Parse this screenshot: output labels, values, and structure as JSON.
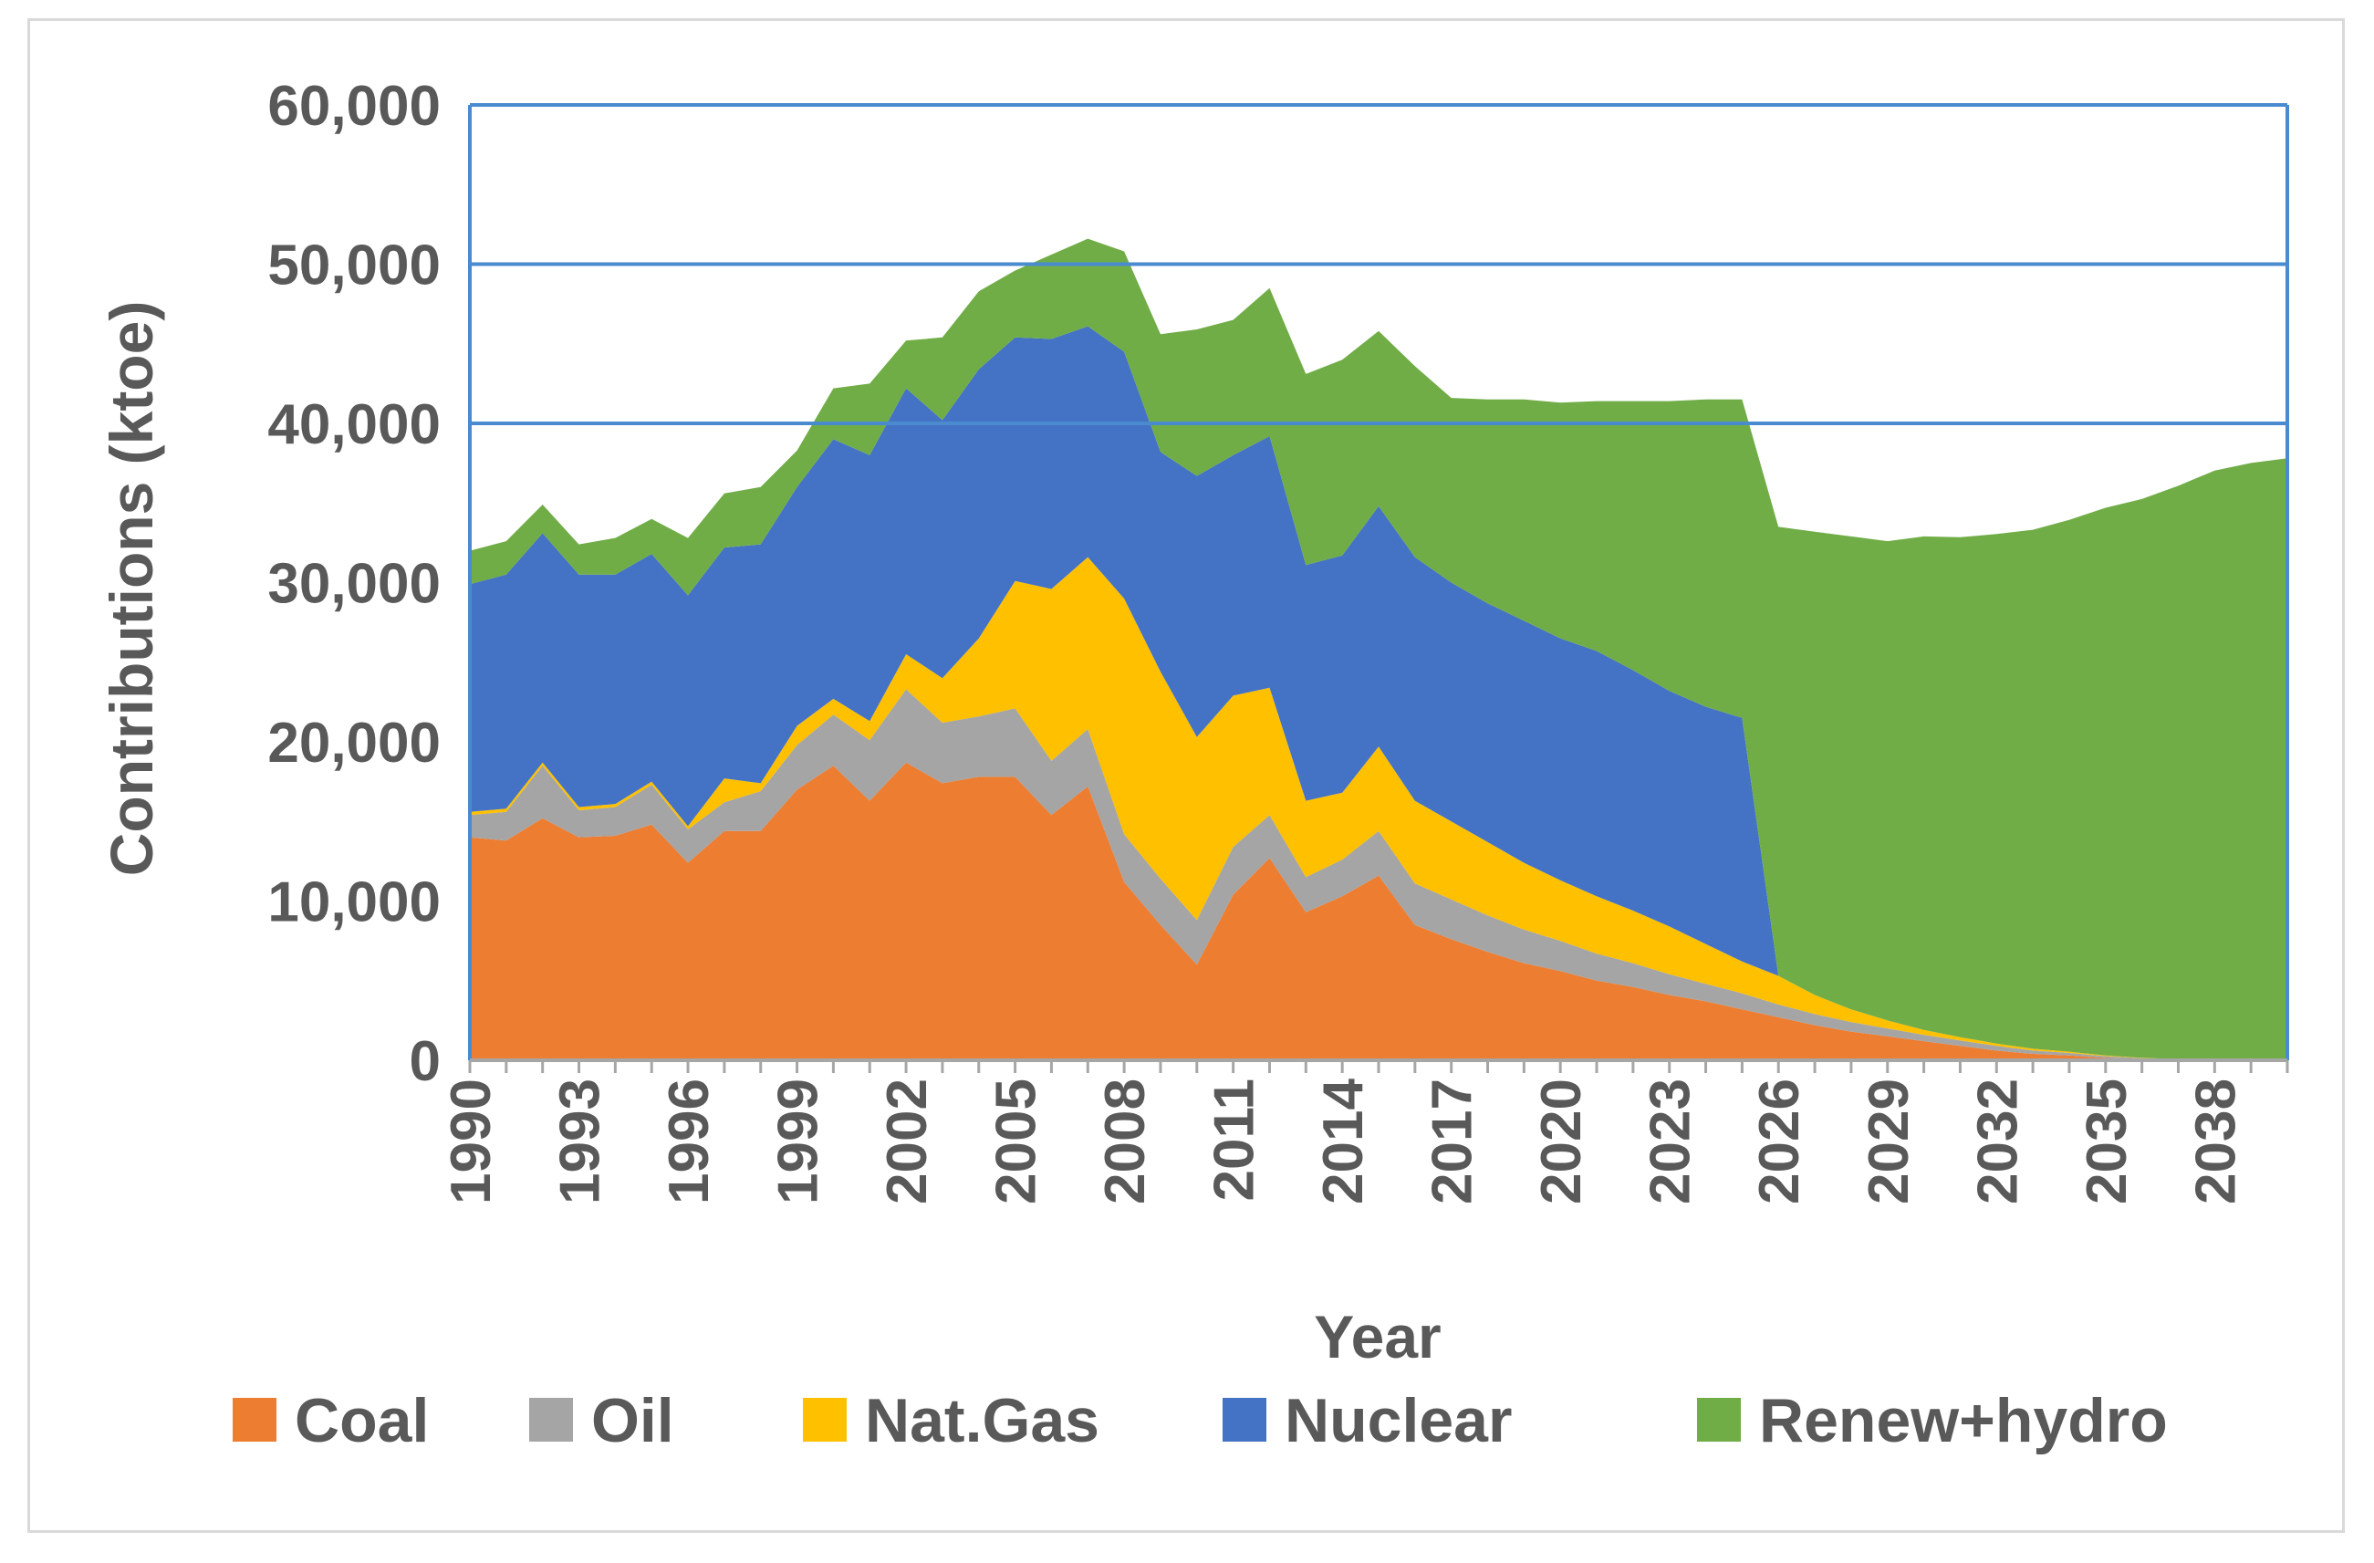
{
  "chart_data": {
    "type": "area",
    "stacked": true,
    "title": "",
    "xlabel": "Year",
    "ylabel": "Contributions (ktoe)",
    "ylim": [
      0,
      60000
    ],
    "yticks": [
      0,
      10000,
      20000,
      30000,
      40000,
      50000,
      60000
    ],
    "ytick_labels": [
      "0",
      "10,000",
      "20,000",
      "30,000",
      "40,000",
      "50,000",
      "60,000"
    ],
    "gridlines": [
      40000,
      50000
    ],
    "legend_position": "bottom",
    "x": [
      1990,
      1991,
      1992,
      1993,
      1994,
      1995,
      1996,
      1997,
      1998,
      1999,
      2000,
      2001,
      2002,
      2003,
      2004,
      2005,
      2006,
      2007,
      2008,
      2009,
      2010,
      2011,
      2012,
      2013,
      2014,
      2015,
      2016,
      2017,
      2018,
      2019,
      2020,
      2021,
      2022,
      2023,
      2024,
      2025,
      2026,
      2027,
      2028,
      2029,
      2030,
      2031,
      2032,
      2033,
      2034,
      2035,
      2036,
      2037,
      2038,
      2039,
      2040
    ],
    "xtick_labels": [
      "1990",
      "1993",
      "1996",
      "1999",
      "2002",
      "2005",
      "2008",
      "2011",
      "2014",
      "2017",
      "2020",
      "2023",
      "2026",
      "2029",
      "2032",
      "2035",
      "2038"
    ],
    "series": [
      {
        "name": "Coal",
        "color": "#ED7D31",
        "values": [
          14000,
          13800,
          15200,
          14000,
          14100,
          14800,
          12400,
          14400,
          14400,
          17000,
          18500,
          16300,
          18700,
          17400,
          17800,
          17800,
          15400,
          17200,
          11200,
          8500,
          6000,
          10400,
          12700,
          9300,
          10300,
          11600,
          8500,
          7600,
          6800,
          6100,
          5600,
          5000,
          4600,
          4100,
          3700,
          3200,
          2700,
          2200,
          1800,
          1500,
          1200,
          900,
          600,
          400,
          300,
          150,
          60,
          30,
          10,
          5,
          0
        ]
      },
      {
        "name": "Oil",
        "color": "#A5A5A5",
        "values": [
          1400,
          1800,
          3300,
          1700,
          1800,
          2500,
          2100,
          1800,
          2500,
          2800,
          3200,
          3800,
          4600,
          3800,
          3800,
          4300,
          3400,
          3600,
          3000,
          2900,
          2800,
          3000,
          2700,
          2200,
          2300,
          2800,
          2600,
          2500,
          2300,
          2100,
          1900,
          1700,
          1500,
          1300,
          1100,
          1000,
          800,
          700,
          600,
          500,
          400,
          350,
          300,
          220,
          160,
          110,
          70,
          40,
          20,
          10,
          5
        ]
      },
      {
        "name": "Nat.Gas",
        "color": "#FFC000",
        "values": [
          200,
          200,
          200,
          200,
          200,
          200,
          200,
          1500,
          500,
          1200,
          1000,
          1200,
          2200,
          2800,
          4900,
          8000,
          10800,
          10800,
          14800,
          13000,
          11500,
          9500,
          8000,
          4800,
          4200,
          5300,
          5200,
          4900,
          4600,
          4200,
          3800,
          3600,
          3300,
          3000,
          2500,
          2000,
          1800,
          1200,
          800,
          500,
          300,
          200,
          150,
          100,
          80,
          40,
          20,
          10,
          5,
          0,
          0
        ]
      },
      {
        "name": "Nuclear",
        "color": "#4472C4",
        "values": [
          14300,
          14700,
          14400,
          14600,
          14400,
          14300,
          14500,
          14500,
          15000,
          15000,
          16300,
          16700,
          16700,
          16200,
          16900,
          15300,
          15700,
          14500,
          15500,
          13800,
          16400,
          15100,
          15800,
          14800,
          14900,
          15100,
          15300,
          15000,
          15000,
          15200,
          15200,
          15400,
          15100,
          14800,
          14900,
          15300,
          0,
          0,
          0,
          0,
          0,
          0,
          0,
          0,
          0,
          0,
          0,
          0,
          0,
          0,
          0
        ]
      },
      {
        "name": "Renew+hydro",
        "color": "#70AD47",
        "values": [
          2100,
          2100,
          1800,
          1900,
          2300,
          2200,
          3600,
          3400,
          3600,
          2300,
          3200,
          4500,
          3000,
          5200,
          4900,
          4200,
          5300,
          5500,
          6300,
          7400,
          9200,
          8500,
          9300,
          12000,
          12300,
          11000,
          12000,
          11600,
          12800,
          13900,
          14800,
          15700,
          16900,
          18200,
          19300,
          20000,
          28200,
          29100,
          29700,
          30100,
          31000,
          31400,
          32000,
          32600,
          33400,
          34400,
          35100,
          36000,
          37000,
          37500,
          37800
        ]
      }
    ]
  }
}
